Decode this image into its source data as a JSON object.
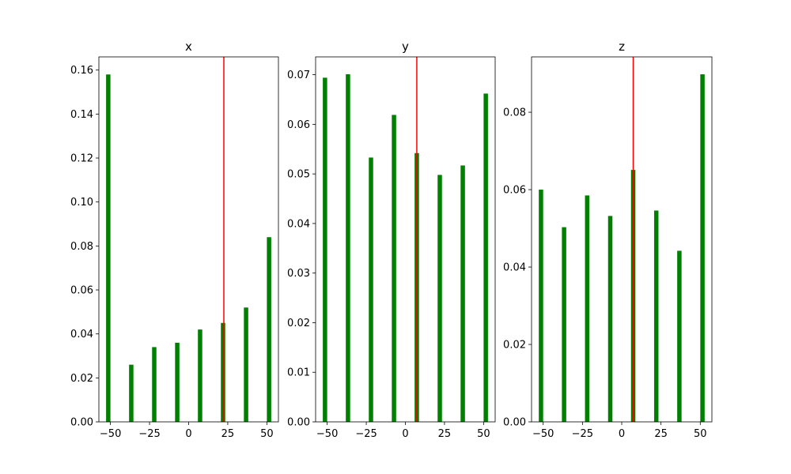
{
  "chart_data": [
    {
      "type": "bar",
      "title": "x",
      "xlabel": "",
      "ylabel": "",
      "x": [
        -51.4,
        -36.7,
        -22.0,
        -7.3,
        7.3,
        22.0,
        36.7,
        51.4
      ],
      "values": [
        0.158,
        0.026,
        0.034,
        0.036,
        0.042,
        0.045,
        0.052,
        0.084
      ],
      "bar_color": "#008000",
      "vline": {
        "x": 22.5,
        "color": "#ff0000"
      },
      "xlim": [
        -57.4,
        57.4
      ],
      "ylim": [
        0,
        0.166
      ],
      "xticks": [
        -50,
        -25,
        0,
        25,
        50
      ],
      "xtick_labels": [
        "−50",
        "−25",
        "0",
        "25",
        "50"
      ],
      "yticks": [
        0,
        0.02,
        0.04,
        0.06,
        0.08,
        0.1,
        0.12,
        0.14,
        0.16
      ],
      "ytick_labels": [
        "0.00",
        "0.02",
        "0.04",
        "0.06",
        "0.08",
        "0.10",
        "0.12",
        "0.14",
        "0.16"
      ],
      "grid": false
    },
    {
      "type": "bar",
      "title": "y",
      "xlabel": "",
      "ylabel": "",
      "x": [
        -51.4,
        -36.7,
        -22.0,
        -7.3,
        7.3,
        22.0,
        36.7,
        51.4
      ],
      "values": [
        0.0694,
        0.0701,
        0.0533,
        0.0619,
        0.0542,
        0.0498,
        0.0517,
        0.0662
      ],
      "bar_color": "#008000",
      "vline": {
        "x": 7.3,
        "color": "#ff0000"
      },
      "xlim": [
        -57.4,
        57.4
      ],
      "ylim": [
        0,
        0.0736
      ],
      "xticks": [
        -50,
        -25,
        0,
        25,
        50
      ],
      "xtick_labels": [
        "−50",
        "−25",
        "0",
        "25",
        "50"
      ],
      "yticks": [
        0,
        0.01,
        0.02,
        0.03,
        0.04,
        0.05,
        0.06,
        0.07
      ],
      "ytick_labels": [
        "0.00",
        "0.01",
        "0.02",
        "0.03",
        "0.04",
        "0.05",
        "0.06",
        "0.07"
      ],
      "grid": false
    },
    {
      "type": "bar",
      "title": "z",
      "xlabel": "",
      "ylabel": "",
      "x": [
        -51.4,
        -36.7,
        -22.0,
        -7.3,
        7.3,
        22.0,
        36.7,
        51.4
      ],
      "values": [
        0.06,
        0.0503,
        0.0585,
        0.0532,
        0.0651,
        0.0546,
        0.0442,
        0.0898
      ],
      "bar_color": "#008000",
      "vline": {
        "x": 7.3,
        "color": "#ff0000"
      },
      "xlim": [
        -57.4,
        57.4
      ],
      "ylim": [
        0,
        0.0943
      ],
      "xticks": [
        -50,
        -25,
        0,
        25,
        50
      ],
      "xtick_labels": [
        "−50",
        "−25",
        "0",
        "25",
        "50"
      ],
      "yticks": [
        0,
        0.02,
        0.04,
        0.06,
        0.08
      ],
      "ytick_labels": [
        "0.00",
        "0.02",
        "0.04",
        "0.06",
        "0.08"
      ],
      "grid": false
    }
  ]
}
